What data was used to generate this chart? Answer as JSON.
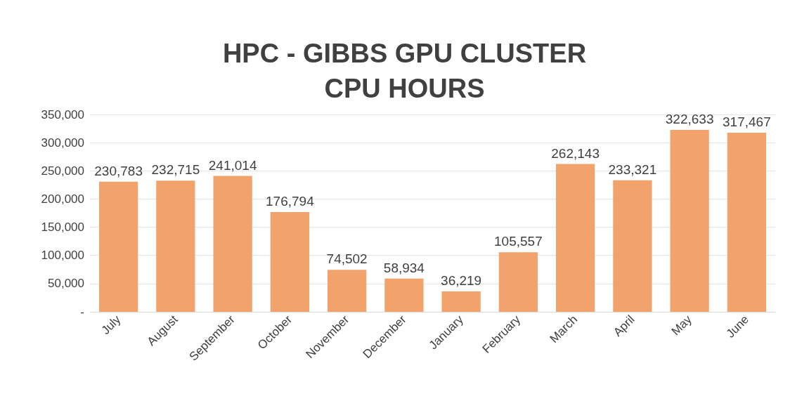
{
  "chart_data": {
    "type": "bar",
    "title": "HPC - GIBBS GPU CLUSTER\nCPU HOURS",
    "categories": [
      "July",
      "August",
      "September",
      "October",
      "November",
      "December",
      "January",
      "February",
      "March",
      "April",
      "May",
      "June"
    ],
    "values": [
      230783,
      232715,
      241014,
      176794,
      74502,
      58934,
      36219,
      105557,
      262143,
      233321,
      322633,
      317467
    ],
    "value_labels": [
      "230,783",
      "232,715",
      "241,014",
      "176,794",
      "74,502",
      "58,934",
      "36,219",
      "105,557",
      "262,143",
      "233,321",
      "322,633",
      "317,467"
    ],
    "color": "#f2a36b",
    "ylim": [
      0,
      350000
    ],
    "yticks": [
      {
        "value": 0,
        "label": "-"
      },
      {
        "value": 50000,
        "label": "50,000"
      },
      {
        "value": 100000,
        "label": "100,000"
      },
      {
        "value": 150000,
        "label": "150,000"
      },
      {
        "value": 200000,
        "label": "200,000"
      },
      {
        "value": 250000,
        "label": "250,000"
      },
      {
        "value": 300000,
        "label": "300,000"
      },
      {
        "value": 350000,
        "label": "350,000"
      }
    ],
    "grid": "y"
  }
}
